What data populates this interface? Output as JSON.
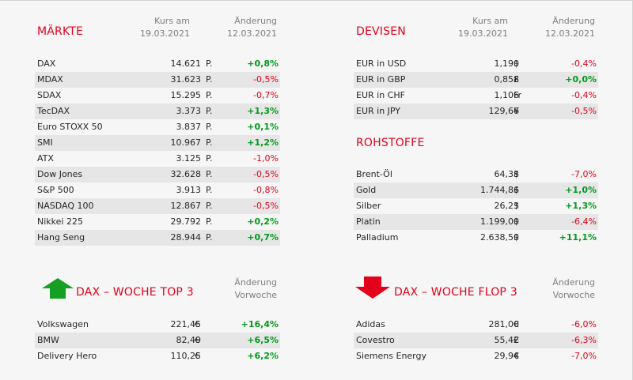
{
  "maerkte": {
    "title": "MÄRKTE",
    "col1": [
      "Kurs am",
      "19.03.2021"
    ],
    "col2": [
      "Änderung",
      "12.03.2021"
    ],
    "rows": [
      {
        "name": "DAX",
        "value": "14.621",
        "unit": "P.",
        "change": "+0,8%",
        "dir": "pos"
      },
      {
        "name": "MDAX",
        "value": "31.623",
        "unit": "P.",
        "change": "-0,5%",
        "dir": "neg"
      },
      {
        "name": "SDAX",
        "value": "15.295",
        "unit": "P.",
        "change": "-0,7%",
        "dir": "neg"
      },
      {
        "name": "TecDAX",
        "value": "3.373",
        "unit": "P.",
        "change": "+1,3%",
        "dir": "pos"
      },
      {
        "name": "Euro STOXX 50",
        "value": "3.837",
        "unit": "P.",
        "change": "+0,1%",
        "dir": "pos"
      },
      {
        "name": "SMI",
        "value": "10.967",
        "unit": "P.",
        "change": "+1,2%",
        "dir": "pos"
      },
      {
        "name": "ATX",
        "value": "3.125",
        "unit": "P.",
        "change": "-1,0%",
        "dir": "neg"
      },
      {
        "name": "Dow Jones",
        "value": "32.628",
        "unit": "P.",
        "change": "-0,5%",
        "dir": "neg"
      },
      {
        "name": "S&P 500",
        "value": "3.913",
        "unit": "P.",
        "change": "-0,8%",
        "dir": "neg"
      },
      {
        "name": "NASDAQ 100",
        "value": "12.867",
        "unit": "P.",
        "change": "-0,5%",
        "dir": "neg"
      },
      {
        "name": "Nikkei 225",
        "value": "29.792",
        "unit": "P.",
        "change": "+0,2%",
        "dir": "pos"
      },
      {
        "name": "Hang Seng",
        "value": "28.944",
        "unit": "P.",
        "change": "+0,7%",
        "dir": "pos"
      }
    ]
  },
  "devisen": {
    "title": "DEVISEN",
    "col1": [
      "Kurs am",
      "19.03.2021"
    ],
    "col2": [
      "Änderung",
      "12.03.2021"
    ],
    "rows": [
      {
        "name": "EUR in USD",
        "value": "1,190",
        "unit": "$",
        "change": "-0,4%",
        "dir": "neg"
      },
      {
        "name": "EUR in GBP",
        "value": "0,858",
        "unit": "£",
        "change": "+0,0%",
        "dir": "pos"
      },
      {
        "name": "EUR in CHF",
        "value": "1,106",
        "unit": "Fr",
        "change": "-0,4%",
        "dir": "neg"
      },
      {
        "name": "EUR in JPY",
        "value": "129,66",
        "unit": "¥",
        "change": "-0,5%",
        "dir": "neg"
      }
    ]
  },
  "rohstoffe": {
    "title": "ROHSTOFFE",
    "rows": [
      {
        "name": "Brent-Öl",
        "value": "64,38",
        "unit": "$",
        "change": "-7,0%",
        "dir": "neg"
      },
      {
        "name": "Gold",
        "value": "1.744,86",
        "unit": "$",
        "change": "+1,0%",
        "dir": "pos"
      },
      {
        "name": "Silber",
        "value": "26,23",
        "unit": "$",
        "change": "+1,3%",
        "dir": "pos"
      },
      {
        "name": "Platin",
        "value": "1.199,00",
        "unit": "$",
        "change": "-6,4%",
        "dir": "neg"
      },
      {
        "name": "Palladium",
        "value": "2.638,50",
        "unit": "$",
        "change": "+11,1%",
        "dir": "pos"
      }
    ]
  },
  "top3": {
    "title": "DAX – WOCHE TOP 3",
    "col2": [
      "Änderung",
      "Vorwoche"
    ],
    "arrow_color": "#16a023",
    "rows": [
      {
        "name": "Volkswagen",
        "value": "221,45",
        "unit": "€",
        "change": "+16,4%",
        "dir": "pos"
      },
      {
        "name": "BMW",
        "value": "82,49",
        "unit": "€",
        "change": "+6,5%",
        "dir": "pos"
      },
      {
        "name": "Delivery Hero",
        "value": "110,25",
        "unit": "€",
        "change": "+6,2%",
        "dir": "pos"
      }
    ]
  },
  "flop3": {
    "title": "DAX – WOCHE FLOP 3",
    "col2": [
      "Änderung",
      "Vorwoche"
    ],
    "arrow_color": "#e3001b",
    "rows": [
      {
        "name": "Adidas",
        "value": "281,00",
        "unit": "€",
        "change": "-6,0%",
        "dir": "neg"
      },
      {
        "name": "Covestro",
        "value": "55,42",
        "unit": "€",
        "change": "-6,3%",
        "dir": "neg"
      },
      {
        "name": "Siemens Energy",
        "value": "29,94",
        "unit": "€",
        "change": "-7,0%",
        "dir": "neg"
      }
    ]
  }
}
